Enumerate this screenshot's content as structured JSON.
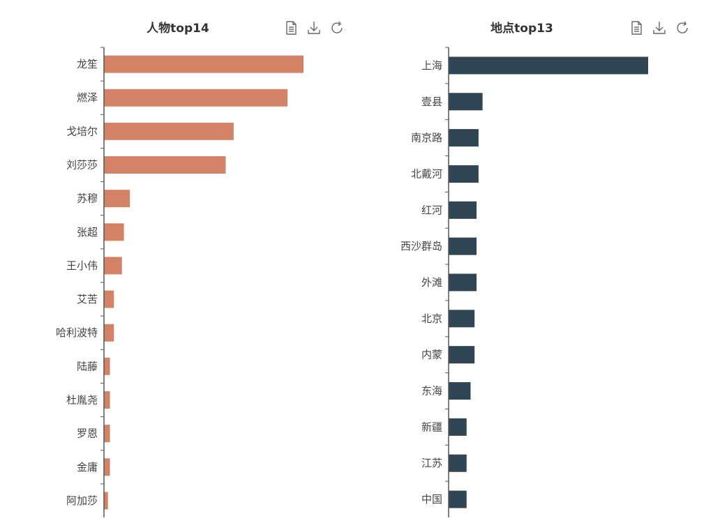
{
  "toolbox": {
    "icons": [
      "data-view-icon",
      "download-icon",
      "refresh-icon"
    ]
  },
  "chart_data": [
    {
      "type": "bar",
      "orientation": "horizontal",
      "title": "人物top14",
      "color": "#d48265",
      "categories": [
        "龙笙",
        "燃泽",
        "戈培尔",
        "刘莎莎",
        "苏穆",
        "张超",
        "王小伟",
        "艾苦",
        "哈利波特",
        "陆藤",
        "杜胤尧",
        "罗恩",
        "金庸",
        "阿加莎"
      ],
      "values": [
        100,
        92,
        65,
        61,
        13,
        10,
        9,
        5,
        5,
        3,
        3,
        3,
        3,
        2
      ],
      "xlim": [
        0,
        100
      ],
      "grid": false,
      "x_axis_visible": false
    },
    {
      "type": "bar",
      "orientation": "horizontal",
      "title": "地点top13",
      "color": "#2f4554",
      "categories": [
        "上海",
        "壹县",
        "南京路",
        "北戴河",
        "红河",
        "西沙群岛",
        "外滩",
        "北京",
        "内蒙",
        "东海",
        "新疆",
        "江苏",
        "中国"
      ],
      "values": [
        100,
        17,
        15,
        15,
        14,
        14,
        14,
        13,
        13,
        11,
        9,
        9,
        9
      ],
      "xlim": [
        0,
        100
      ],
      "grid": false,
      "x_axis_visible": false
    }
  ]
}
